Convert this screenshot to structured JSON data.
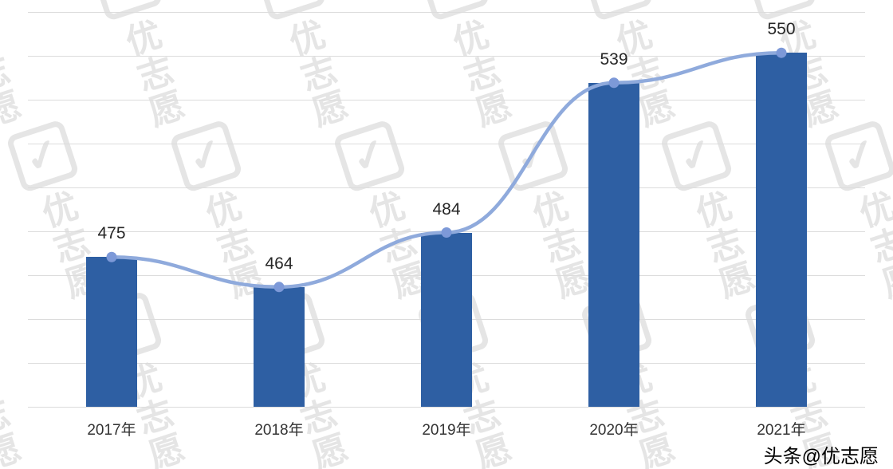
{
  "chart_data": {
    "type": "bar",
    "categories": [
      "2017年",
      "2018年",
      "2019年",
      "2020年",
      "2021年"
    ],
    "series": [
      {
        "name": "bars",
        "type": "bar",
        "values": [
          475,
          464,
          484,
          539,
          550
        ]
      },
      {
        "name": "trend",
        "type": "line",
        "values": [
          475,
          464,
          484,
          539,
          550
        ]
      }
    ],
    "data_labels": [
      "475",
      "464",
      "484",
      "539",
      "550"
    ],
    "title": "",
    "xlabel": "",
    "ylabel": "",
    "ylim": [
      420,
      565
    ],
    "gridlines": true,
    "legend": "none",
    "marker_style": "circle",
    "colors": {
      "bar": "#2e5fa3",
      "line": "#8faadc",
      "marker": "#7d99d8",
      "grid": "#dcdcdc",
      "label": "#262626"
    }
  },
  "watermark": {
    "brand_text": "优志愿",
    "logo_glyph": "✓"
  },
  "caption": {
    "text": "头条@优志愿"
  }
}
